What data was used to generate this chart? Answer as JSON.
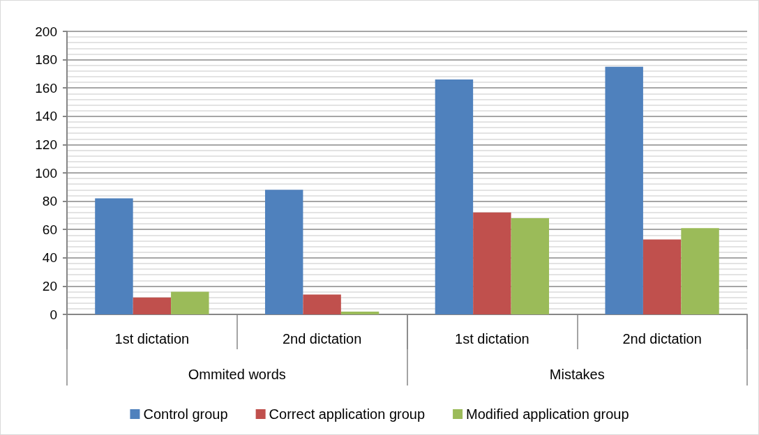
{
  "chart_data": {
    "type": "bar",
    "categories": [
      "1st dictation",
      "2nd dictation",
      "1st dictation",
      "2nd dictation"
    ],
    "annotations": [
      "Ommited words",
      "Mistakes"
    ],
    "series": [
      {
        "name": "Control group",
        "color": "#4f81bd",
        "values": [
          82,
          88,
          166,
          175
        ]
      },
      {
        "name": "Correct application group",
        "color": "#c0504d",
        "values": [
          12,
          14,
          72,
          53
        ]
      },
      {
        "name": "Modified application group",
        "color": "#9bbb59",
        "values": [
          16,
          2,
          68,
          61
        ]
      }
    ],
    "ylim": [
      0,
      200
    ],
    "yticks": [
      0,
      20,
      40,
      60,
      80,
      100,
      120,
      140,
      160,
      180,
      200
    ],
    "grid": "y",
    "legend": "bottom"
  }
}
